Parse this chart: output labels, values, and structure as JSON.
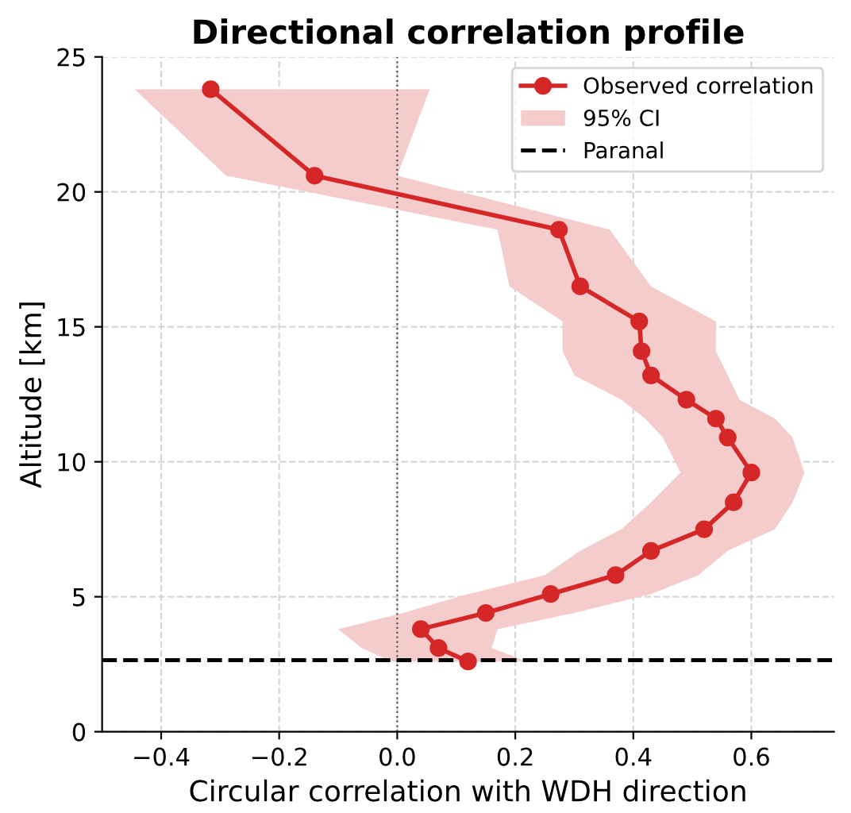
{
  "chart_data": {
    "type": "line",
    "orientation": "horizontal",
    "title": "Directional correlation profile",
    "xlabel": "Circular correlation with WDH direction",
    "ylabel": "Altitude [km]",
    "series": [
      {
        "name": "Observed correlation",
        "color": "#d62728",
        "x": [
          23.8,
          20.6,
          18.6,
          16.5,
          15.2,
          14.1,
          13.2,
          12.3,
          11.6,
          10.9,
          9.6,
          8.5,
          7.5,
          6.7,
          5.8,
          5.1,
          4.4,
          3.8,
          3.1,
          2.6
        ],
        "values": [
          -0.316,
          -0.14,
          0.274,
          0.31,
          0.41,
          0.414,
          0.43,
          0.49,
          0.54,
          0.56,
          0.6,
          0.57,
          0.52,
          0.43,
          0.37,
          0.26,
          0.15,
          0.04,
          0.07,
          0.12
        ]
      },
      {
        "name": "95% CI",
        "color": "#f4cccc",
        "type": "area",
        "values": [
          null,
          null,
          null,
          null,
          null,
          null,
          null,
          null,
          null,
          null,
          null,
          null,
          null,
          null,
          null,
          null,
          null,
          null,
          null,
          null
        ],
        "x": [
          23.8,
          20.6,
          18.6,
          16.5,
          15.2,
          14.1,
          13.2,
          12.3,
          11.6,
          10.9,
          9.6,
          8.5,
          7.5,
          6.7,
          5.8,
          5.1,
          4.4,
          3.8,
          3.1,
          2.6
        ],
        "lower": [
          -0.445,
          -0.29,
          0.17,
          0.19,
          0.28,
          0.28,
          0.3,
          0.38,
          0.42,
          0.45,
          0.48,
          0.43,
          0.38,
          0.31,
          0.25,
          0.12,
          0.01,
          -0.1,
          -0.06,
          -0.01
        ],
        "upper": [
          0.055,
          0.0,
          0.36,
          0.43,
          0.54,
          0.54,
          0.56,
          0.58,
          0.64,
          0.67,
          0.69,
          0.67,
          0.64,
          0.56,
          0.51,
          0.43,
          0.3,
          0.17,
          0.16,
          0.22
        ]
      }
    ],
    "ref_lines": [
      {
        "axis": "x",
        "value": 0,
        "color": "#555555",
        "line_style": "dotted"
      },
      {
        "axis": "y",
        "value": 2.65,
        "label": "Paranal",
        "color": "#000000",
        "line_style": "dashed"
      }
    ],
    "xlim": [
      -0.5,
      0.74
    ],
    "ylim": [
      0,
      25
    ],
    "xticks": [
      {
        "value": -0.4,
        "label": "−0.4"
      },
      {
        "value": -0.2,
        "label": "−0.2"
      },
      {
        "value": 0,
        "label": "0.0"
      },
      {
        "value": 0.2,
        "label": "0.2"
      },
      {
        "value": 0.4,
        "label": "0.4"
      },
      {
        "value": 0.6,
        "label": "0.6"
      }
    ],
    "yticks": [
      0,
      5,
      10,
      15,
      20,
      25
    ],
    "grid": true,
    "legend": "top right",
    "marker": "circle",
    "line_style": "solid"
  }
}
